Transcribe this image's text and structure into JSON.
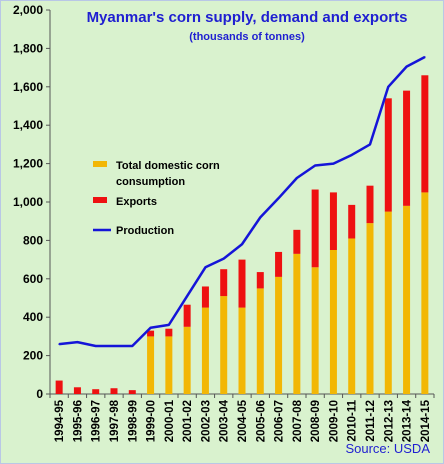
{
  "title": "Myanmar's corn supply, demand and exports",
  "subtitle": "(thousands of tonnes)",
  "source": "Source: USDA",
  "colors": {
    "background": "#d9f2ce",
    "consumption": "#f2b705",
    "exports": "#ee1111",
    "production": "#1515d8",
    "title": "#1f1fd1"
  },
  "chart_data": {
    "type": "bar",
    "title": "Myanmar's corn supply, demand and exports",
    "subtitle": "(thousands of tonnes)",
    "stacked": true,
    "grid": false,
    "legend_position": "left",
    "ylim": [
      0,
      2000
    ],
    "y_ticks": [
      "0",
      "200",
      "400",
      "600",
      "800",
      "1,000",
      "1,200",
      "1,400",
      "1,600",
      "1,800",
      "2,000"
    ],
    "categories": [
      "1994-95",
      "1995-96",
      "1996-97",
      "1997-98",
      "1998-99",
      "1999-00",
      "2000-01",
      "2001-02",
      "2002-03",
      "2003-04",
      "2004-05",
      "2005-06",
      "2006-07",
      "2007-08",
      "2008-09",
      "2009-10",
      "2010-11",
      "2011-12",
      "2012-13",
      "2013-14",
      "2014-15"
    ],
    "series": [
      {
        "name": "Total domestic corn consumption",
        "type": "bar",
        "values": [
          0,
          0,
          0,
          0,
          0,
          300,
          300,
          350,
          450,
          510,
          450,
          550,
          610,
          730,
          660,
          750,
          810,
          890,
          950,
          980,
          1050
        ]
      },
      {
        "name": "Exports",
        "type": "bar",
        "values": [
          70,
          35,
          25,
          30,
          20,
          30,
          40,
          115,
          110,
          140,
          250,
          85,
          130,
          125,
          405,
          300,
          175,
          195,
          590,
          600,
          610
        ]
      },
      {
        "name": "Production",
        "type": "line",
        "values": [
          260,
          270,
          250,
          250,
          250,
          345,
          360,
          510,
          660,
          705,
          780,
          920,
          1020,
          1125,
          1190,
          1200,
          1245,
          1300,
          1600,
          1705,
          1755
        ]
      }
    ]
  }
}
